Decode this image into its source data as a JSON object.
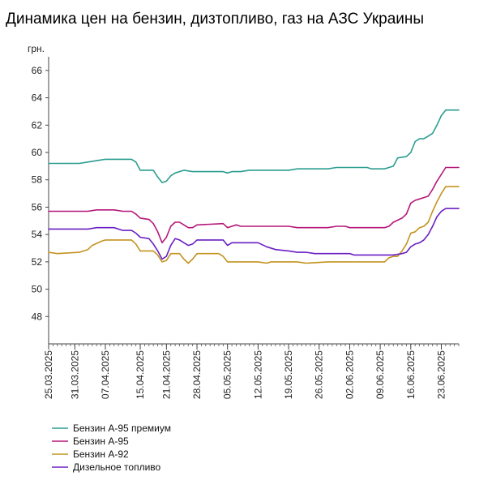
{
  "chart_data": {
    "type": "line",
    "title": "Динамика цен на бензин, дизтопливо, газ на АЗС Украины",
    "ylabel": "грн.",
    "xlabel": "",
    "ylim": [
      46,
      67
    ],
    "xlim": [
      "2025-03-25",
      "2025-06-27"
    ],
    "yticks": [
      48,
      50,
      52,
      54,
      56,
      58,
      60,
      62,
      64,
      66
    ],
    "xticks": [
      "25.03.2025",
      "31.03.2025",
      "07.04.2025",
      "15.04.2025",
      "21.04.2025",
      "28.04.2025",
      "05.05.2025",
      "12.05.2025",
      "19.05.2025",
      "26.05.2025",
      "02.06.2025",
      "09.06.2025",
      "16.06.2025",
      "23.06.2025"
    ],
    "xtick_dates": [
      "2025-03-25",
      "2025-03-31",
      "2025-04-07",
      "2025-04-15",
      "2025-04-21",
      "2025-04-28",
      "2025-05-05",
      "2025-05-12",
      "2025-05-19",
      "2025-05-26",
      "2025-06-02",
      "2025-06-09",
      "2025-06-16",
      "2025-06-23"
    ],
    "grid": false,
    "legend": "bottom-left",
    "series": [
      {
        "name": "Бензин А-95 премиум",
        "color": "#2a9d8f",
        "points": [
          [
            "2025-03-25",
            59.2
          ],
          [
            "2025-04-01",
            59.2
          ],
          [
            "2025-04-03",
            59.3
          ],
          [
            "2025-04-05",
            59.4
          ],
          [
            "2025-04-07",
            59.5
          ],
          [
            "2025-04-13",
            59.5
          ],
          [
            "2025-04-14",
            59.3
          ],
          [
            "2025-04-15",
            58.7
          ],
          [
            "2025-04-18",
            58.7
          ],
          [
            "2025-04-19",
            58.2
          ],
          [
            "2025-04-20",
            57.8
          ],
          [
            "2025-04-21",
            57.9
          ],
          [
            "2025-04-22",
            58.3
          ],
          [
            "2025-04-23",
            58.5
          ],
          [
            "2025-04-25",
            58.7
          ],
          [
            "2025-04-27",
            58.6
          ],
          [
            "2025-04-28",
            58.6
          ],
          [
            "2025-05-04",
            58.6
          ],
          [
            "2025-05-05",
            58.5
          ],
          [
            "2025-05-06",
            58.6
          ],
          [
            "2025-05-08",
            58.6
          ],
          [
            "2025-05-10",
            58.7
          ],
          [
            "2025-05-12",
            58.7
          ],
          [
            "2025-05-14",
            58.7
          ],
          [
            "2025-05-19",
            58.7
          ],
          [
            "2025-05-21",
            58.8
          ],
          [
            "2025-05-28",
            58.8
          ],
          [
            "2025-05-30",
            58.9
          ],
          [
            "2025-06-06",
            58.9
          ],
          [
            "2025-06-07",
            58.8
          ],
          [
            "2025-06-10",
            58.8
          ],
          [
            "2025-06-11",
            58.9
          ],
          [
            "2025-06-12",
            59.0
          ],
          [
            "2025-06-13",
            59.6
          ],
          [
            "2025-06-15",
            59.7
          ],
          [
            "2025-06-16",
            60.0
          ],
          [
            "2025-06-17",
            60.8
          ],
          [
            "2025-06-18",
            61.0
          ],
          [
            "2025-06-19",
            61.0
          ],
          [
            "2025-06-20",
            61.2
          ],
          [
            "2025-06-21",
            61.4
          ],
          [
            "2025-06-22",
            62.0
          ],
          [
            "2025-06-23",
            62.7
          ],
          [
            "2025-06-24",
            63.1
          ],
          [
            "2025-06-27",
            63.1
          ]
        ]
      },
      {
        "name": "Бензин А-95",
        "color": "#b5167a",
        "points": [
          [
            "2025-03-25",
            55.7
          ],
          [
            "2025-04-03",
            55.7
          ],
          [
            "2025-04-05",
            55.8
          ],
          [
            "2025-04-07",
            55.8
          ],
          [
            "2025-04-09",
            55.8
          ],
          [
            "2025-04-11",
            55.7
          ],
          [
            "2025-04-13",
            55.7
          ],
          [
            "2025-04-14",
            55.5
          ],
          [
            "2025-04-15",
            55.2
          ],
          [
            "2025-04-17",
            55.1
          ],
          [
            "2025-04-18",
            54.8
          ],
          [
            "2025-04-19",
            54.2
          ],
          [
            "2025-04-20",
            53.4
          ],
          [
            "2025-04-21",
            53.8
          ],
          [
            "2025-04-22",
            54.6
          ],
          [
            "2025-04-23",
            54.9
          ],
          [
            "2025-04-24",
            54.9
          ],
          [
            "2025-04-25",
            54.7
          ],
          [
            "2025-04-26",
            54.5
          ],
          [
            "2025-04-27",
            54.5
          ],
          [
            "2025-04-28",
            54.7
          ],
          [
            "2025-05-04",
            54.8
          ],
          [
            "2025-05-05",
            54.5
          ],
          [
            "2025-05-06",
            54.6
          ],
          [
            "2025-05-07",
            54.7
          ],
          [
            "2025-05-08",
            54.6
          ],
          [
            "2025-05-11",
            54.6
          ],
          [
            "2025-05-12",
            54.6
          ],
          [
            "2025-05-19",
            54.6
          ],
          [
            "2025-05-21",
            54.5
          ],
          [
            "2025-05-28",
            54.5
          ],
          [
            "2025-05-30",
            54.6
          ],
          [
            "2025-06-01",
            54.6
          ],
          [
            "2025-06-02",
            54.5
          ],
          [
            "2025-06-10",
            54.5
          ],
          [
            "2025-06-11",
            54.6
          ],
          [
            "2025-06-12",
            54.9
          ],
          [
            "2025-06-14",
            55.2
          ],
          [
            "2025-06-15",
            55.5
          ],
          [
            "2025-06-16",
            56.3
          ],
          [
            "2025-06-17",
            56.5
          ],
          [
            "2025-06-18",
            56.6
          ],
          [
            "2025-06-19",
            56.7
          ],
          [
            "2025-06-20",
            56.8
          ],
          [
            "2025-06-21",
            57.3
          ],
          [
            "2025-06-22",
            57.9
          ],
          [
            "2025-06-23",
            58.4
          ],
          [
            "2025-06-24",
            58.9
          ],
          [
            "2025-06-27",
            58.9
          ]
        ]
      },
      {
        "name": "Бензин А-92",
        "color": "#c4931f",
        "points": [
          [
            "2025-03-25",
            52.7
          ],
          [
            "2025-03-27",
            52.6
          ],
          [
            "2025-04-01",
            52.7
          ],
          [
            "2025-04-03",
            52.9
          ],
          [
            "2025-04-04",
            53.2
          ],
          [
            "2025-04-06",
            53.5
          ],
          [
            "2025-04-07",
            53.6
          ],
          [
            "2025-04-13",
            53.6
          ],
          [
            "2025-04-14",
            53.3
          ],
          [
            "2025-04-15",
            52.8
          ],
          [
            "2025-04-18",
            52.8
          ],
          [
            "2025-04-19",
            52.5
          ],
          [
            "2025-04-20",
            52.0
          ],
          [
            "2025-04-21",
            52.1
          ],
          [
            "2025-04-22",
            52.6
          ],
          [
            "2025-04-24",
            52.6
          ],
          [
            "2025-04-25",
            52.2
          ],
          [
            "2025-04-26",
            51.9
          ],
          [
            "2025-04-27",
            52.2
          ],
          [
            "2025-04-28",
            52.6
          ],
          [
            "2025-05-03",
            52.6
          ],
          [
            "2025-05-04",
            52.4
          ],
          [
            "2025-05-05",
            52.0
          ],
          [
            "2025-05-06",
            52.0
          ],
          [
            "2025-05-12",
            52.0
          ],
          [
            "2025-05-14",
            51.9
          ],
          [
            "2025-05-15",
            52.0
          ],
          [
            "2025-05-21",
            52.0
          ],
          [
            "2025-05-23",
            51.9
          ],
          [
            "2025-05-28",
            52.0
          ],
          [
            "2025-06-10",
            52.0
          ],
          [
            "2025-06-11",
            52.3
          ],
          [
            "2025-06-12",
            52.4
          ],
          [
            "2025-06-13",
            52.4
          ],
          [
            "2025-06-14",
            52.8
          ],
          [
            "2025-06-15",
            53.3
          ],
          [
            "2025-06-16",
            54.1
          ],
          [
            "2025-06-17",
            54.2
          ],
          [
            "2025-06-18",
            54.5
          ],
          [
            "2025-06-19",
            54.6
          ],
          [
            "2025-06-20",
            54.9
          ],
          [
            "2025-06-21",
            55.7
          ],
          [
            "2025-06-22",
            56.4
          ],
          [
            "2025-06-23",
            57.0
          ],
          [
            "2025-06-24",
            57.5
          ],
          [
            "2025-06-27",
            57.5
          ]
        ]
      },
      {
        "name": "Дизельное топливо",
        "color": "#6a1fc2",
        "points": [
          [
            "2025-03-25",
            54.4
          ],
          [
            "2025-03-27",
            54.4
          ],
          [
            "2025-03-29",
            54.4
          ],
          [
            "2025-04-03",
            54.4
          ],
          [
            "2025-04-05",
            54.5
          ],
          [
            "2025-04-09",
            54.5
          ],
          [
            "2025-04-11",
            54.3
          ],
          [
            "2025-04-13",
            54.3
          ],
          [
            "2025-04-14",
            54.1
          ],
          [
            "2025-04-15",
            53.8
          ],
          [
            "2025-04-17",
            53.7
          ],
          [
            "2025-04-18",
            53.3
          ],
          [
            "2025-04-19",
            52.8
          ],
          [
            "2025-04-20",
            52.2
          ],
          [
            "2025-04-21",
            52.4
          ],
          [
            "2025-04-22",
            53.2
          ],
          [
            "2025-04-23",
            53.7
          ],
          [
            "2025-04-24",
            53.6
          ],
          [
            "2025-04-25",
            53.4
          ],
          [
            "2025-04-26",
            53.2
          ],
          [
            "2025-04-27",
            53.3
          ],
          [
            "2025-04-28",
            53.6
          ],
          [
            "2025-05-04",
            53.6
          ],
          [
            "2025-05-05",
            53.2
          ],
          [
            "2025-05-06",
            53.4
          ],
          [
            "2025-05-12",
            53.4
          ],
          [
            "2025-05-14",
            53.1
          ],
          [
            "2025-05-16",
            52.9
          ],
          [
            "2025-05-19",
            52.8
          ],
          [
            "2025-05-21",
            52.7
          ],
          [
            "2025-05-23",
            52.7
          ],
          [
            "2025-05-25",
            52.6
          ],
          [
            "2025-05-30",
            52.6
          ],
          [
            "2025-06-02",
            52.6
          ],
          [
            "2025-06-03",
            52.5
          ],
          [
            "2025-06-12",
            52.5
          ],
          [
            "2025-06-14",
            52.6
          ],
          [
            "2025-06-15",
            52.7
          ],
          [
            "2025-06-16",
            53.1
          ],
          [
            "2025-06-17",
            53.3
          ],
          [
            "2025-06-18",
            53.4
          ],
          [
            "2025-06-19",
            53.6
          ],
          [
            "2025-06-20",
            54.0
          ],
          [
            "2025-06-21",
            54.6
          ],
          [
            "2025-06-22",
            55.3
          ],
          [
            "2025-06-23",
            55.7
          ],
          [
            "2025-06-24",
            55.9
          ],
          [
            "2025-06-27",
            55.9
          ]
        ]
      }
    ]
  }
}
